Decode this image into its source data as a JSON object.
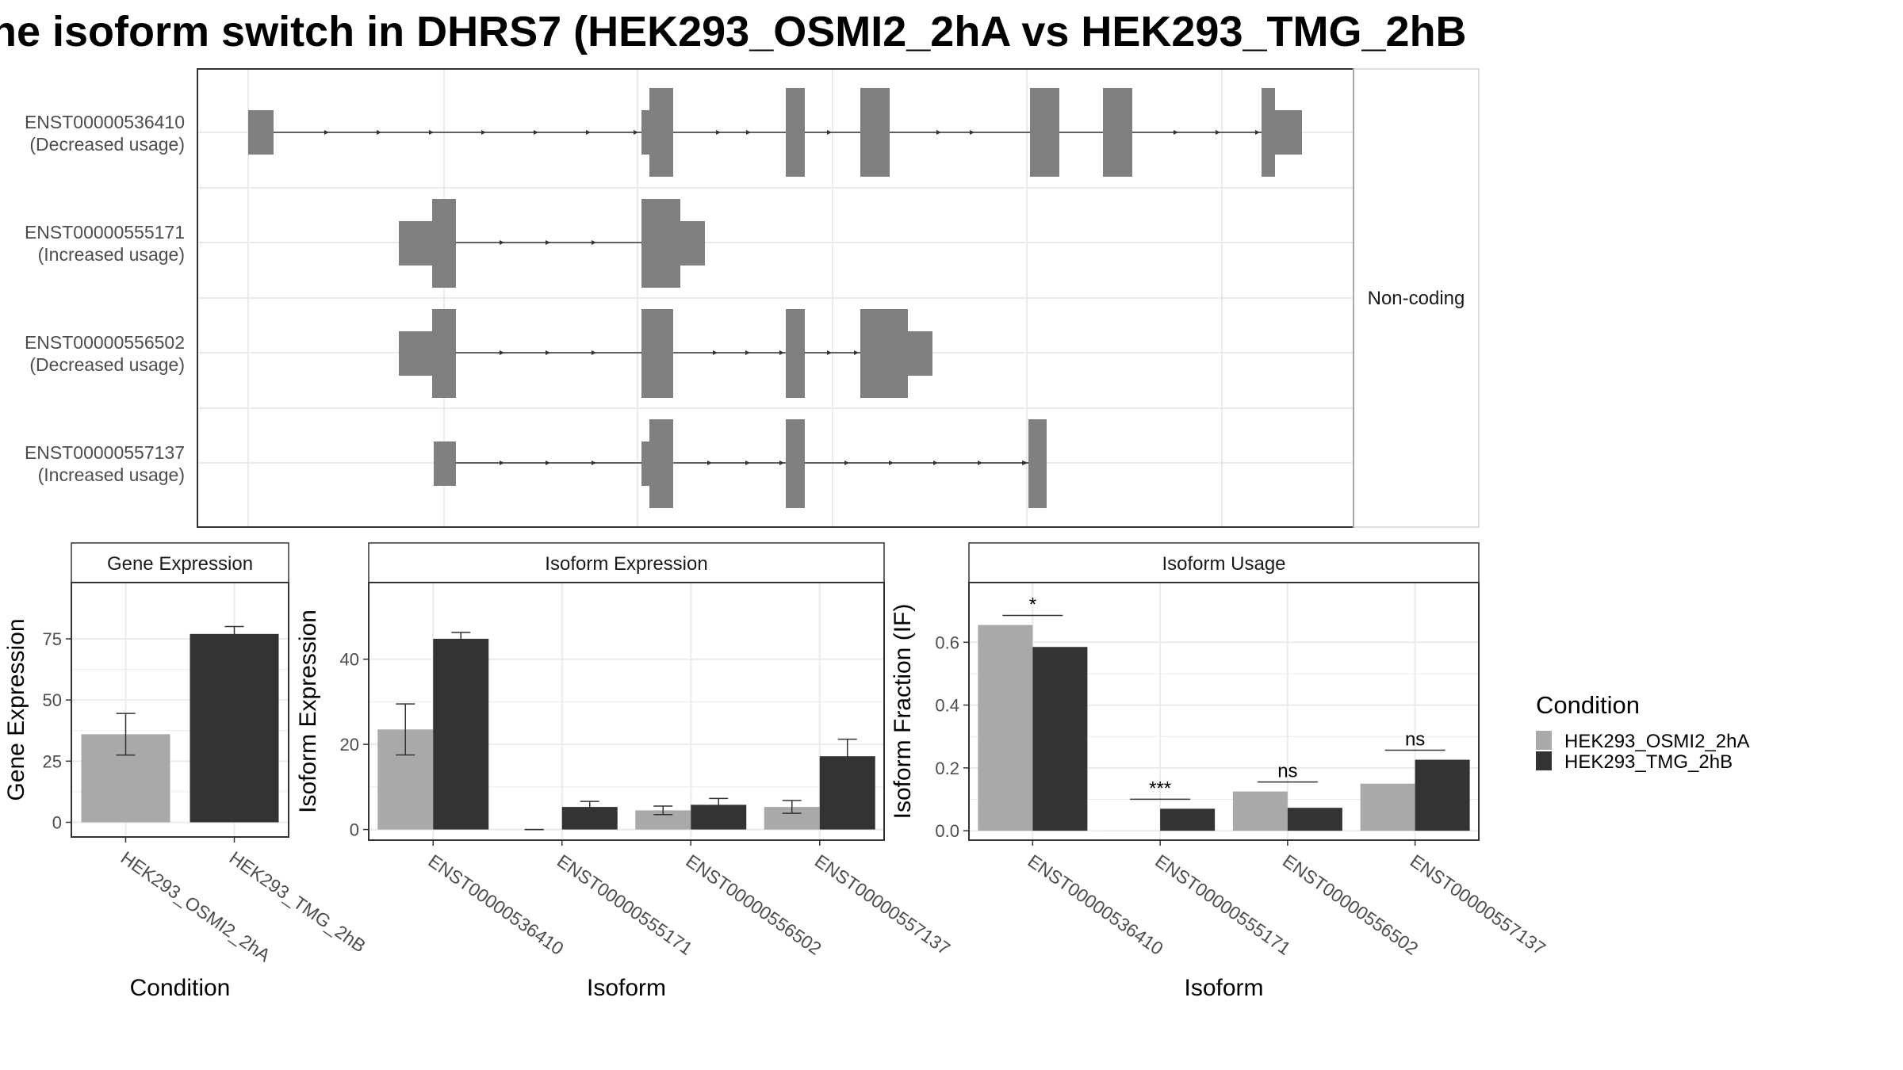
{
  "title": "he isoform switch in DHRS7 (HEK293_OSMI2_2hA vs HEK293_TMG_2hB",
  "colors": {
    "cond_a": "#a9a9a9",
    "cond_b": "#333333",
    "exon": "#7f7f7f",
    "grid": "#ebebeb",
    "panel_border": "#333333"
  },
  "legend": {
    "title": "Condition",
    "items": [
      "HEK293_OSMI2_2hA",
      "HEK293_TMG_2hB"
    ]
  },
  "chart_data": [
    {
      "type": "diagram",
      "name": "isoform structures",
      "facet_label": "Non-coding",
      "isoforms": [
        {
          "id": "ENST00000536410",
          "usage": "(Decreased usage)"
        },
        {
          "id": "ENST00000555171",
          "usage": "(Increased usage)"
        },
        {
          "id": "ENST00000556502",
          "usage": "(Decreased usage)"
        },
        {
          "id": "ENST00000557137",
          "usage": "(Increased usage)"
        }
      ]
    },
    {
      "type": "bar",
      "strip": "Gene Expression",
      "xlabel": "Condition",
      "ylabel": "Gene Expression",
      "ylim": [
        -6,
        98
      ],
      "yticks": [
        0,
        25,
        50,
        75
      ],
      "categories": [
        "HEK293_OSMI2_2hA",
        "HEK293_TMG_2hB"
      ],
      "values": [
        36,
        77
      ],
      "error_low": [
        27.5,
        74
      ],
      "error_high": [
        44.5,
        80
      ]
    },
    {
      "type": "bar",
      "strip": "Isoform Expression",
      "xlabel": "Isoform",
      "ylabel": "Isoform Expression",
      "ylim": [
        -2.5,
        58
      ],
      "yticks": [
        0,
        20,
        40
      ],
      "categories": [
        "ENST00000536410",
        "ENST00000555171",
        "ENST00000556502",
        "ENST00000557137"
      ],
      "series": [
        {
          "name": "HEK293_OSMI2_2hA",
          "values": [
            23.5,
            0.0,
            4.5,
            5.3
          ],
          "error_low": [
            17.5,
            0.0,
            3.5,
            3.8
          ],
          "error_high": [
            29.5,
            0.0,
            5.5,
            6.8
          ]
        },
        {
          "name": "HEK293_TMG_2hB",
          "values": [
            44.8,
            5.3,
            5.8,
            17.2
          ],
          "error_low": [
            43.3,
            4.0,
            4.3,
            13.2
          ],
          "error_high": [
            46.3,
            6.6,
            7.3,
            21.2
          ]
        }
      ]
    },
    {
      "type": "bar",
      "strip": "Isoform Usage",
      "xlabel": "Isoform",
      "ylabel": "Isoform Fraction (IF)",
      "ylim": [
        -0.03,
        0.79
      ],
      "yticks": [
        0.0,
        0.2,
        0.4,
        0.6
      ],
      "ytick_labels": [
        "0.0",
        "0.2",
        "0.4",
        "0.6"
      ],
      "categories": [
        "ENST00000536410",
        "ENST00000555171",
        "ENST00000556502",
        "ENST00000557137"
      ],
      "series": [
        {
          "name": "HEK293_OSMI2_2hA",
          "values": [
            0.655,
            0.0,
            0.125,
            0.15
          ]
        },
        {
          "name": "HEK293_TMG_2hB",
          "values": [
            0.585,
            0.07,
            0.073,
            0.226
          ]
        }
      ],
      "significance": [
        "*",
        "***",
        "ns",
        "ns"
      ]
    }
  ]
}
